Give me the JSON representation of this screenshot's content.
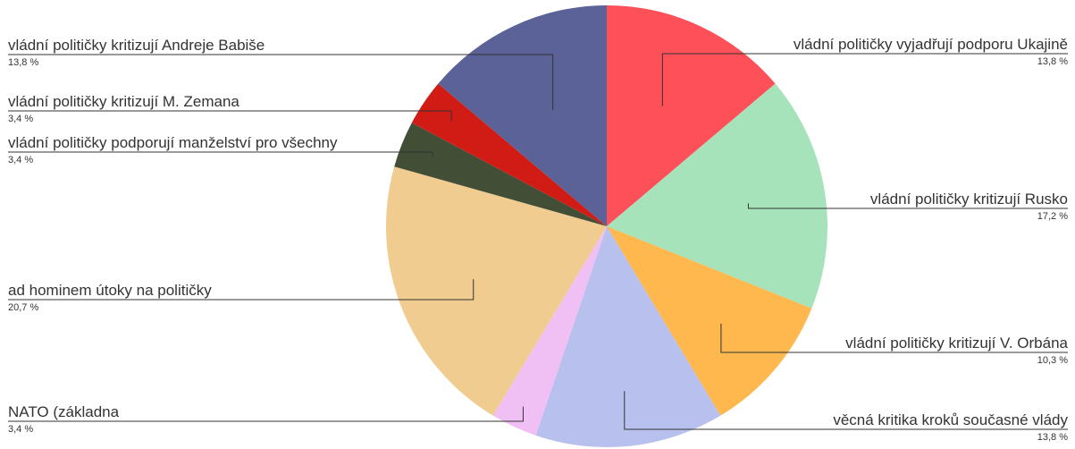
{
  "chart_data": {
    "type": "pie",
    "slices": [
      {
        "label": "vládní političky vyjadřují podporu Ukajině",
        "value": 13.8,
        "pct_label": "13,8 %",
        "color": "#fe5058"
      },
      {
        "label": "vládní političky kritizují Rusko",
        "value": 17.2,
        "pct_label": "17,2 %",
        "color": "#a6e3bb"
      },
      {
        "label": "vládní političky kritizují V. Orbána",
        "value": 10.3,
        "pct_label": "10,3 %",
        "color": "#feb84d"
      },
      {
        "label": "věcná kritika kroků současné vlády",
        "value": 13.8,
        "pct_label": "13,8 %",
        "color": "#b8c0ee"
      },
      {
        "label": "NATO (základna",
        "value": 3.4,
        "pct_label": "3,4 %",
        "color": "#f0c0f5"
      },
      {
        "label": "ad hominem útoky na političky",
        "value": 20.7,
        "pct_label": "20,7 %",
        "color": "#f0cc90"
      },
      {
        "label": "vládní političky podporují manželství pro všechny",
        "value": 3.4,
        "pct_label": "3,4 %",
        "color": "#434e37"
      },
      {
        "label": "vládní političky kritizují M. Zemana",
        "value": 3.4,
        "pct_label": "3,4 %",
        "color": "#d01c15"
      },
      {
        "label": "vládní političky kritizují Andreje Babiše",
        "value": 13.8,
        "pct_label": "13,8 %",
        "color": "#5a6297"
      }
    ],
    "start": "top",
    "direction": "clockwise",
    "legend": "none"
  }
}
